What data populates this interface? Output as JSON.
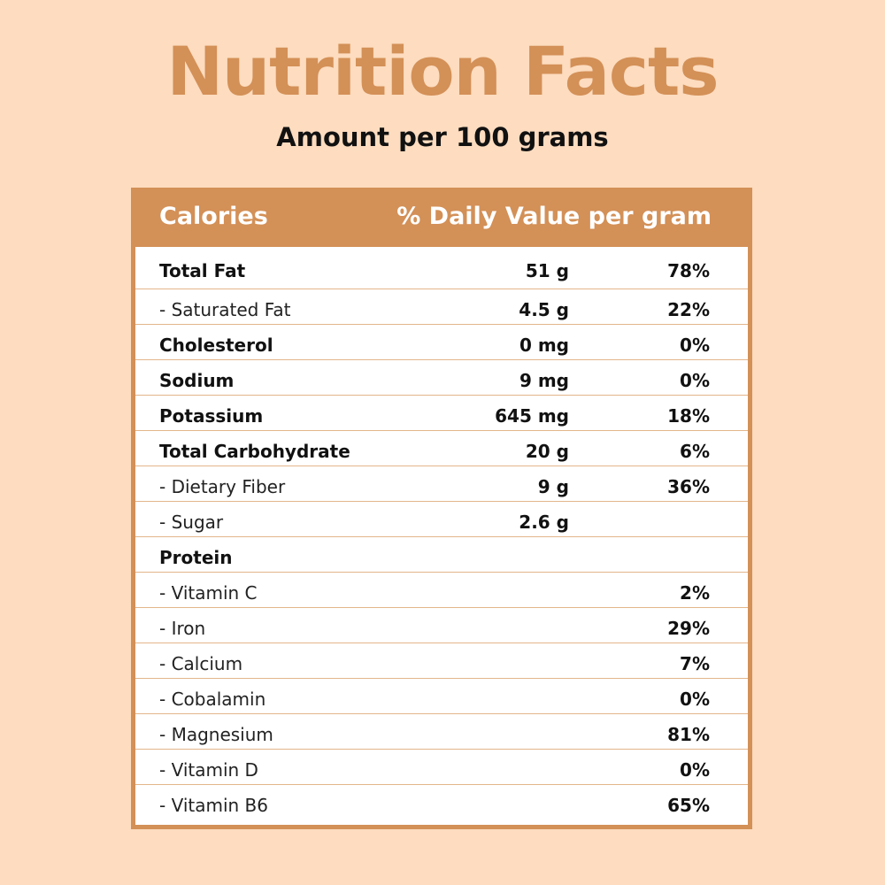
{
  "title": "Nutrition Facts",
  "subtitle": "Amount per 100 grams",
  "table": {
    "header": {
      "calories": "Calories",
      "daily_value": "% Daily Value per gram"
    },
    "rows": [
      {
        "name": "Total Fat",
        "amount": "51 g",
        "pct": "78%",
        "bold": true
      },
      {
        "name": "- Saturated Fat",
        "amount": "4.5 g",
        "pct": "22%",
        "bold": false
      },
      {
        "name": "Cholesterol",
        "amount": "0 mg",
        "pct": "0%",
        "bold": true
      },
      {
        "name": "Sodium",
        "amount": "9 mg",
        "pct": "0%",
        "bold": true
      },
      {
        "name": "Potassium",
        "amount": "645 mg",
        "pct": "18%",
        "bold": true
      },
      {
        "name": "Total Carbohydrate",
        "amount": "20 g",
        "pct": "6%",
        "bold": true
      },
      {
        "name": "- Dietary Fiber",
        "amount": "9 g",
        "pct": "36%",
        "bold": false
      },
      {
        "name": "- Sugar",
        "amount": "2.6 g",
        "pct": "",
        "bold": false
      },
      {
        "name": "Protein",
        "amount": "",
        "pct": "",
        "bold": true
      },
      {
        "name": "- Vitamin C",
        "amount": "",
        "pct": "2%",
        "bold": false
      },
      {
        "name": "- Iron",
        "amount": "",
        "pct": "29%",
        "bold": false
      },
      {
        "name": "- Calcium",
        "amount": "",
        "pct": "7%",
        "bold": false
      },
      {
        "name": "- Cobalamin",
        "amount": "",
        "pct": "0%",
        "bold": false
      },
      {
        "name": "- Magnesium",
        "amount": "",
        "pct": "81%",
        "bold": false
      },
      {
        "name": "- Vitamin D",
        "amount": "",
        "pct": "0%",
        "bold": false
      },
      {
        "name": "- Vitamin B6",
        "amount": "",
        "pct": "65%",
        "bold": false
      }
    ]
  },
  "colors": {
    "background": "#fddcbf",
    "accent": "#d39057",
    "text": "#111111"
  }
}
